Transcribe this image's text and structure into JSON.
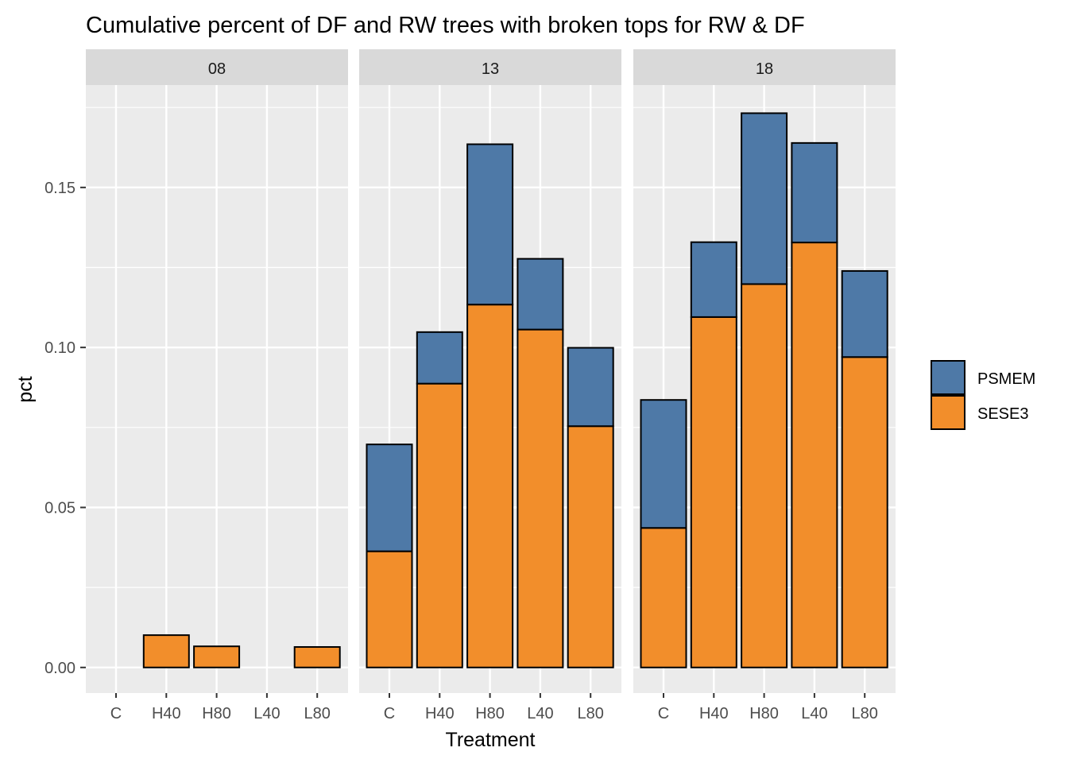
{
  "chart_data": {
    "type": "bar",
    "stacked": true,
    "title": "Cumulative percent of DF and RW trees with broken tops for RW & DF",
    "xlabel": "Treatment",
    "ylabel": "pct",
    "ylim": [
      -0.008,
      0.182
    ],
    "yticks": [
      0.0,
      0.05,
      0.1,
      0.15
    ],
    "ytick_labels": [
      "0.00",
      "0.05",
      "0.10",
      "0.15"
    ],
    "categories": [
      "C",
      "H40",
      "H80",
      "L40",
      "L80"
    ],
    "grid": true,
    "legend_position": "right",
    "series_colors": {
      "PSMEM": "#4e79a7",
      "SESE3": "#f28e2b"
    },
    "legend": [
      {
        "name": "PSMEM",
        "color": "#4e79a7"
      },
      {
        "name": "SESE3",
        "color": "#f28e2b"
      }
    ],
    "panels": [
      {
        "label": "08",
        "series": [
          {
            "name": "SESE3",
            "values": [
              0,
              0.0101,
              0.0066,
              0,
              0.0064
            ]
          },
          {
            "name": "PSMEM",
            "values": [
              0,
              0,
              0,
              0,
              0
            ]
          }
        ]
      },
      {
        "label": "13",
        "series": [
          {
            "name": "SESE3",
            "values": [
              0.0363,
              0.0887,
              0.1134,
              0.1056,
              0.0754
            ]
          },
          {
            "name": "PSMEM",
            "values": [
              0.0334,
              0.0161,
              0.0501,
              0.0221,
              0.0245
            ]
          }
        ]
      },
      {
        "label": "18",
        "series": [
          {
            "name": "SESE3",
            "values": [
              0.0436,
              0.1095,
              0.1198,
              0.1328,
              0.097
            ]
          },
          {
            "name": "PSMEM",
            "values": [
              0.04,
              0.0234,
              0.0534,
              0.0311,
              0.0269
            ]
          }
        ]
      }
    ]
  }
}
